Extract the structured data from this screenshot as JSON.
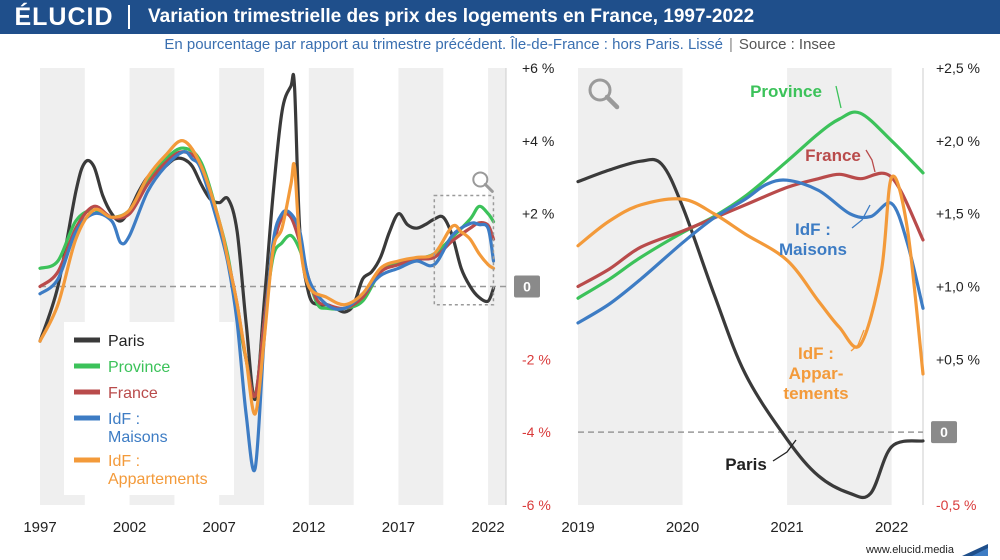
{
  "header": {
    "logo": "ÉLUCID",
    "title": "Variation trimestrielle des prix des logements en France, 1997-2022",
    "subtitle": "En pourcentage par rapport au trimestre précédent. Île-de-France : hors Paris. Lissé",
    "source": "Source : Insee"
  },
  "footer": {
    "url": "www.elucid.media"
  },
  "colors": {
    "Paris": "#3a3a3a",
    "Province": "#3cc25a",
    "France": "#b94b4b",
    "IdF_Maisons": "#3d7cc4",
    "IdF_Appartements": "#f39a3a",
    "negative_tick": "#d93a3a",
    "band": "#efefef",
    "zero_line": "#999999"
  },
  "icons": [
    "magnifier-icon"
  ],
  "chart_data": [
    {
      "type": "line",
      "panel": "left",
      "x_unit": "year",
      "xlim": [
        1997,
        2023
      ],
      "ylim": [
        -6,
        6
      ],
      "y_ticks": [
        "+6 %",
        "+4 %",
        "+2 %",
        "0",
        "-2 %",
        "-4 %",
        "-6 %"
      ],
      "x_ticks": [
        "1997",
        "2002",
        "2007",
        "2012",
        "2017",
        "2022"
      ],
      "grid": "alternating vertical bands",
      "legend": "bottom-left",
      "legend_labels": [
        "Paris",
        "Province",
        "France",
        "IdF : Maisons",
        "IdF : Appartements"
      ],
      "series": [
        {
          "name": "Paris",
          "x": [
            1997,
            1998,
            1999,
            1999.5,
            2000,
            2000.5,
            2001,
            2001.5,
            2002,
            2002.5,
            2003,
            2003.5,
            2004,
            2004.5,
            2005,
            2005.5,
            2006,
            2006.5,
            2007,
            2007.5,
            2008,
            2008.5,
            2009,
            2009.5,
            2010,
            2010.5,
            2011,
            2011.2,
            2011.5,
            2012,
            2012.5,
            2013,
            2013.5,
            2014,
            2014.5,
            2015,
            2015.5,
            2016,
            2016.5,
            2017,
            2017.5,
            2018,
            2018.5,
            2019,
            2019.5,
            2020,
            2020.5,
            2021,
            2021.5,
            2022,
            2022.3
          ],
          "y": [
            -1.5,
            0,
            2.6,
            3.4,
            3.3,
            2.5,
            2.0,
            1.8,
            2.1,
            2.6,
            3.0,
            3.1,
            3.3,
            3.5,
            3.5,
            3.3,
            2.8,
            2.4,
            2.3,
            2.4,
            1.5,
            -1.0,
            -3.1,
            -0.5,
            2.5,
            4.8,
            5.5,
            5.5,
            1.5,
            -0.2,
            -0.5,
            -0.5,
            -0.6,
            -0.7,
            -0.5,
            0.2,
            0.4,
            0.8,
            1.5,
            2.0,
            1.7,
            1.6,
            1.7,
            1.85,
            1.9,
            1.4,
            0.5,
            0.0,
            -0.3,
            -0.4,
            -0.05
          ]
        },
        {
          "name": "Province",
          "x": [
            1997,
            1998,
            1999,
            2000,
            2001,
            2002,
            2003,
            2004,
            2005,
            2006,
            2007,
            2007.5,
            2008,
            2008.5,
            2009,
            2009.5,
            2010,
            2010.5,
            2011,
            2011.5,
            2012,
            2012.5,
            2013,
            2014,
            2015,
            2016,
            2017,
            2018,
            2019,
            2020,
            2021,
            2021.5,
            2022,
            2022.3
          ],
          "y": [
            0.5,
            0.7,
            1.8,
            2.1,
            1.9,
            2.1,
            2.9,
            3.5,
            3.8,
            3.4,
            1.8,
            0.8,
            -0.7,
            -2.0,
            -3.0,
            -1.0,
            0.8,
            1.2,
            1.4,
            1.0,
            0.2,
            -0.5,
            -0.6,
            -0.6,
            -0.4,
            0.4,
            0.65,
            0.75,
            0.9,
            1.35,
            1.85,
            2.2,
            2.0,
            1.78
          ]
        },
        {
          "name": "France",
          "x": [
            1997,
            1998,
            1999,
            2000,
            2001,
            2002,
            2003,
            2004,
            2005,
            2006,
            2007,
            2007.5,
            2008,
            2008.5,
            2009,
            2009.5,
            2010,
            2010.5,
            2011,
            2011.5,
            2012,
            2012.5,
            2013,
            2014,
            2015,
            2016,
            2017,
            2018,
            2019,
            2020,
            2021,
            2021.5,
            2022,
            2022.3
          ],
          "y": [
            0.0,
            0.4,
            1.6,
            2.2,
            1.9,
            2.0,
            2.8,
            3.4,
            3.7,
            3.3,
            1.7,
            0.7,
            -0.5,
            -2.0,
            -3.0,
            -1.0,
            1.0,
            1.9,
            1.9,
            1.2,
            0.2,
            -0.4,
            -0.5,
            -0.6,
            -0.3,
            0.4,
            0.6,
            0.75,
            0.8,
            1.25,
            1.6,
            1.75,
            1.68,
            1.3
          ]
        },
        {
          "name": "IdF : Maisons",
          "x": [
            1997,
            1998,
            1999,
            2000,
            2001,
            2001.5,
            2002,
            2003,
            2004,
            2005,
            2005.5,
            2006,
            2007,
            2007.5,
            2008,
            2008.5,
            2009,
            2009.5,
            2010,
            2010.5,
            2011,
            2011.5,
            2012,
            2013,
            2014,
            2015,
            2016,
            2017,
            2018,
            2019,
            2020,
            2021,
            2021.5,
            2022,
            2022.3
          ],
          "y": [
            -0.2,
            0.2,
            1.5,
            2.0,
            1.8,
            1.2,
            1.4,
            2.6,
            3.3,
            3.7,
            3.5,
            3.2,
            1.6,
            0.6,
            -1.0,
            -3.5,
            -5.0,
            -1.5,
            1.2,
            2.0,
            2.0,
            1.5,
            0.2,
            -0.5,
            -0.6,
            -0.2,
            0.3,
            0.5,
            0.7,
            0.6,
            1.4,
            1.73,
            1.7,
            1.6,
            0.7
          ]
        },
        {
          "name": "IdF : Appartements",
          "x": [
            1997,
            1998,
            1999,
            2000,
            2001,
            2002,
            2003,
            2004,
            2005,
            2006,
            2007,
            2007.5,
            2008,
            2008.5,
            2009,
            2009.5,
            2010,
            2010.5,
            2011,
            2011.2,
            2011.5,
            2012,
            2013,
            2014,
            2015,
            2016,
            2017,
            2018,
            2019,
            2020,
            2020.5,
            2021,
            2021.5,
            2022,
            2022.3
          ],
          "y": [
            -1.5,
            -0.5,
            1.3,
            2.1,
            1.9,
            2.1,
            3.0,
            3.6,
            4.0,
            3.3,
            1.8,
            0.7,
            -0.5,
            -2.0,
            -3.5,
            -1.5,
            1.0,
            1.6,
            2.8,
            3.3,
            1.2,
            0.0,
            -0.3,
            -0.5,
            -0.2,
            0.5,
            0.7,
            0.8,
            0.9,
            1.65,
            1.5,
            1.3,
            0.9,
            0.6,
            0.5
          ]
        }
      ]
    },
    {
      "type": "line",
      "panel": "right",
      "x_unit": "year",
      "xlim": [
        2019,
        2022.3
      ],
      "ylim": [
        -0.5,
        2.5
      ],
      "y_ticks": [
        "+2,5 %",
        "+2,0 %",
        "+1,5 %",
        "+1,0 %",
        "+0,5 %",
        "0",
        "-0,5 %"
      ],
      "x_ticks": [
        "2019",
        "2020",
        "2021",
        "2022"
      ],
      "grid": "alternating vertical bands",
      "labels": [
        "Paris",
        "Province",
        "France",
        "IdF : Maisons",
        "IdF : Appartements"
      ],
      "series": [
        {
          "name": "Paris",
          "x": [
            2019,
            2019.3,
            2019.6,
            2019.8,
            2020,
            2020.3,
            2020.6,
            2021,
            2021.3,
            2021.6,
            2021.8,
            2022,
            2022.3
          ],
          "y": [
            1.72,
            1.8,
            1.86,
            1.84,
            1.55,
            0.95,
            0.4,
            -0.05,
            -0.3,
            -0.42,
            -0.42,
            -0.1,
            -0.06
          ]
        },
        {
          "name": "Province",
          "x": [
            2019,
            2019.3,
            2019.6,
            2020,
            2020.3,
            2020.6,
            2021,
            2021.3,
            2021.5,
            2021.7,
            2022,
            2022.3
          ],
          "y": [
            0.92,
            1.05,
            1.2,
            1.37,
            1.48,
            1.62,
            1.86,
            2.05,
            2.15,
            2.19,
            2.0,
            1.78
          ]
        },
        {
          "name": "France",
          "x": [
            2019,
            2019.3,
            2019.6,
            2020,
            2020.3,
            2020.6,
            2021,
            2021.3,
            2021.5,
            2021.7,
            2022,
            2022.3
          ],
          "y": [
            1.0,
            1.12,
            1.27,
            1.38,
            1.47,
            1.56,
            1.68,
            1.74,
            1.77,
            1.74,
            1.75,
            1.32
          ]
        },
        {
          "name": "IdF : Maisons",
          "x": [
            2019,
            2019.3,
            2019.6,
            2020,
            2020.3,
            2020.6,
            2020.8,
            2021,
            2021.3,
            2021.6,
            2021.8,
            2022,
            2022.15,
            2022.3
          ],
          "y": [
            0.75,
            0.88,
            1.05,
            1.3,
            1.47,
            1.6,
            1.7,
            1.73,
            1.66,
            1.5,
            1.48,
            1.57,
            1.3,
            0.85
          ]
        },
        {
          "name": "IdF : Appartements",
          "x": [
            2019,
            2019.3,
            2019.6,
            2020,
            2020.3,
            2020.6,
            2021,
            2021.3,
            2021.5,
            2021.7,
            2021.9,
            2022,
            2022.15,
            2022.3
          ],
          "y": [
            1.28,
            1.45,
            1.56,
            1.6,
            1.5,
            1.36,
            1.18,
            0.9,
            0.72,
            0.6,
            1.1,
            1.75,
            1.4,
            0.4
          ]
        }
      ]
    }
  ]
}
